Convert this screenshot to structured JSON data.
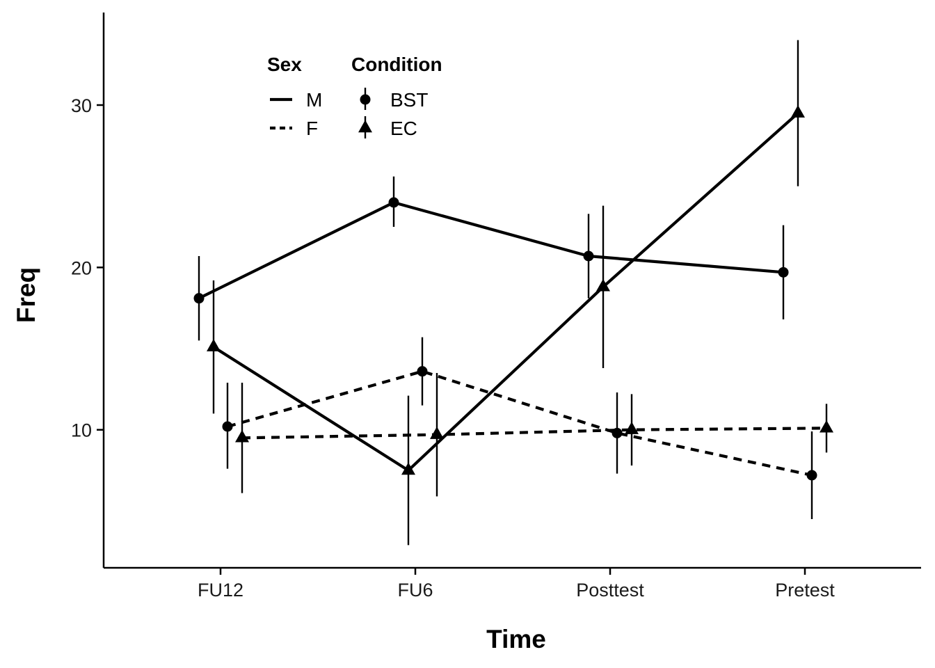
{
  "chart_data": {
    "type": "line",
    "title": "",
    "xlabel": "Time",
    "ylabel": "Freq",
    "categories": [
      "FU12",
      "FU6",
      "Posttest",
      "Pretest"
    ],
    "yticks": [
      10,
      20,
      30
    ],
    "ylim": [
      1.5,
      35.7
    ],
    "grid": false,
    "legend": {
      "placement": "top-left",
      "sex_title": "Sex",
      "sex_items": [
        {
          "label": "M",
          "linetype": "solid"
        },
        {
          "label": "F",
          "linetype": "dashed"
        }
      ],
      "condition_title": "Condition",
      "condition_items": [
        {
          "label": "BST",
          "shape": "circle"
        },
        {
          "label": "EC",
          "shape": "triangle"
        }
      ]
    },
    "series": [
      {
        "sex": "M",
        "condition": "BST",
        "linetype": "solid",
        "shape": "circle",
        "values": [
          18.1,
          24.0,
          20.7,
          19.7
        ],
        "lower": [
          15.5,
          22.5,
          18.1,
          16.8
        ],
        "upper": [
          20.7,
          25.6,
          23.3,
          22.6
        ]
      },
      {
        "sex": "M",
        "condition": "EC",
        "linetype": "solid",
        "shape": "triangle",
        "values": [
          15.1,
          7.5,
          18.8,
          29.5
        ],
        "lower": [
          11.0,
          2.9,
          13.8,
          25.0
        ],
        "upper": [
          19.2,
          12.1,
          23.8,
          34.0
        ]
      },
      {
        "sex": "F",
        "condition": "BST",
        "linetype": "dashed",
        "shape": "circle",
        "values": [
          10.2,
          13.6,
          9.8,
          7.2
        ],
        "lower": [
          7.6,
          11.5,
          7.3,
          4.5
        ],
        "upper": [
          12.9,
          15.7,
          12.3,
          9.9
        ]
      },
      {
        "sex": "F",
        "condition": "EC",
        "linetype": "dashed",
        "shape": "triangle",
        "values": [
          9.5,
          9.7,
          10.0,
          10.1
        ],
        "lower": [
          6.1,
          5.9,
          7.8,
          8.6
        ],
        "upper": [
          12.9,
          13.5,
          12.2,
          11.6
        ]
      }
    ],
    "colors": {
      "line": "#000000",
      "axis": "#000000",
      "background": "#ffffff"
    }
  }
}
